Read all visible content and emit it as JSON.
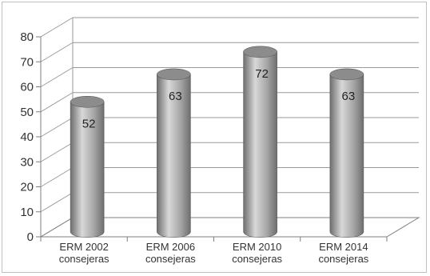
{
  "chart_data": {
    "type": "bar",
    "style": "3d-cylinder",
    "categories": [
      [
        "ERM 2002",
        "consejeras"
      ],
      [
        "ERM  2006",
        "consejeras"
      ],
      [
        "ERM 2010",
        "consejeras"
      ],
      [
        "ERM 2014",
        "consejeras"
      ]
    ],
    "values": [
      52,
      63,
      72,
      63
    ],
    "data_labels": [
      "52",
      "63",
      "72",
      "63"
    ],
    "yticks": [
      "0",
      "10",
      "20",
      "30",
      "40",
      "50",
      "60",
      "70",
      "80"
    ],
    "ylim": [
      0,
      80
    ],
    "grid": true,
    "legend": "none",
    "colors": {
      "bar_light": "#d8d8d8",
      "bar_mid": "#a6a6a6",
      "bar_dark": "#6e6e6e",
      "bar_top": "#8c8c8c",
      "grid": "#9a9a9a",
      "axis": "#7f7f7f"
    }
  }
}
